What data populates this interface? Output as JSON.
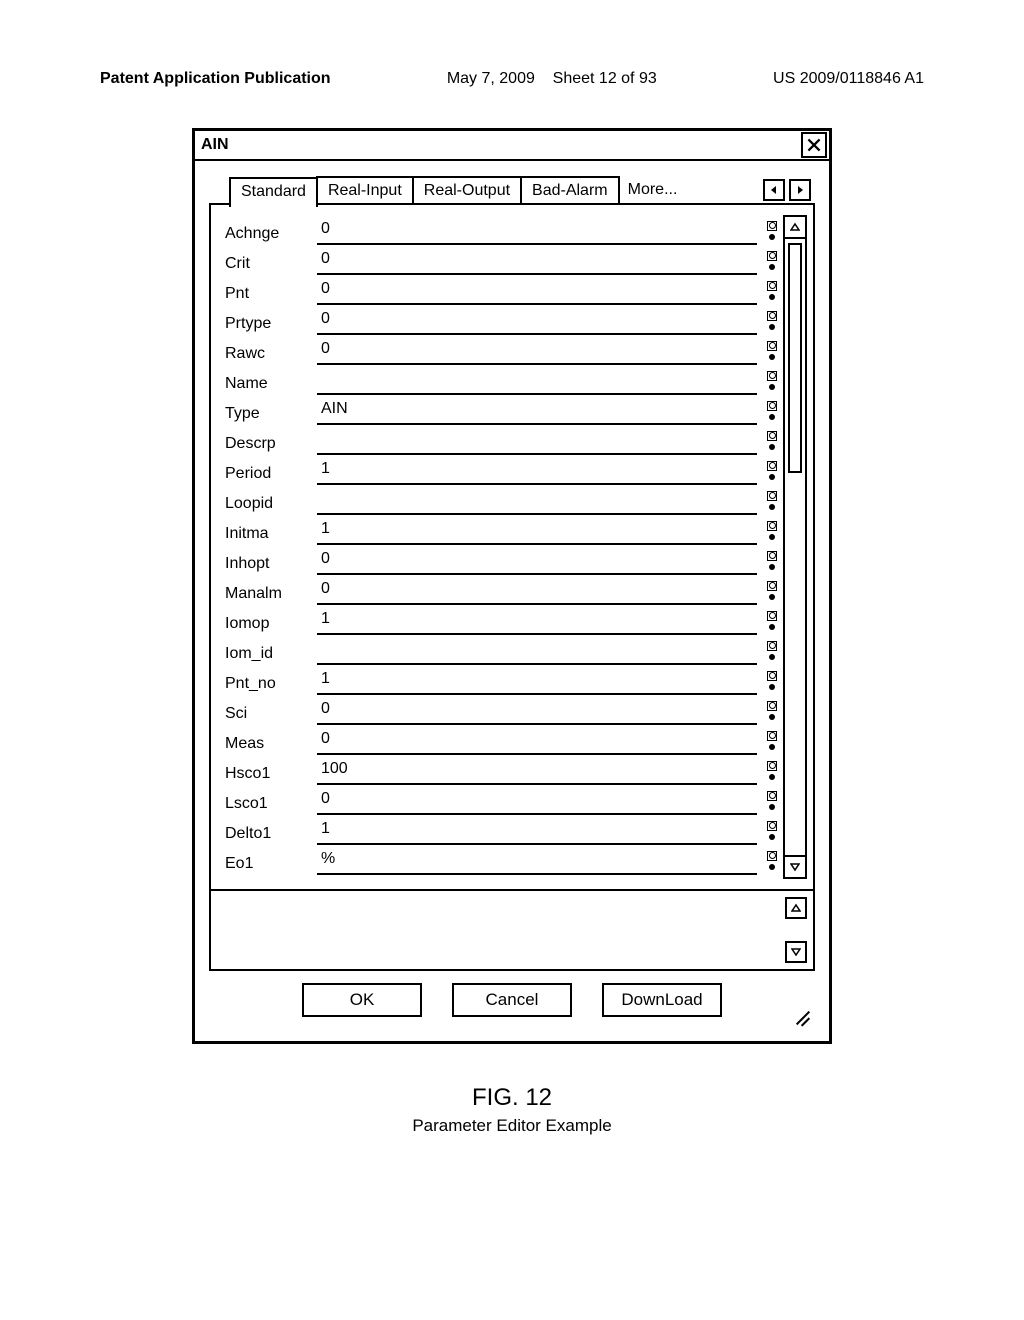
{
  "header": {
    "left": "Patent Application Publication",
    "date": "May 7, 2009",
    "sheet": "Sheet 12 of 93",
    "pubno": "US 2009/0118846 A1"
  },
  "dialog": {
    "title": "AIN",
    "tabs": [
      "Standard",
      "Real-Input",
      "Real-Output",
      "Bad-Alarm"
    ],
    "more_label": "More...",
    "params": [
      {
        "label": "Achnge",
        "value": "0"
      },
      {
        "label": "Crit",
        "value": "0"
      },
      {
        "label": "Pnt",
        "value": "0"
      },
      {
        "label": "Prtype",
        "value": "0"
      },
      {
        "label": "Rawc",
        "value": "0"
      },
      {
        "label": "Name",
        "value": ""
      },
      {
        "label": "Type",
        "value": "AIN"
      },
      {
        "label": "Descrp",
        "value": ""
      },
      {
        "label": "Period",
        "value": "1"
      },
      {
        "label": "Loopid",
        "value": ""
      },
      {
        "label": "Initma",
        "value": "1"
      },
      {
        "label": "Inhopt",
        "value": "0"
      },
      {
        "label": "Manalm",
        "value": "0"
      },
      {
        "label": "Iomop",
        "value": "1"
      },
      {
        "label": "Iom_id",
        "value": ""
      },
      {
        "label": "Pnt_no",
        "value": "1"
      },
      {
        "label": "Sci",
        "value": "0"
      },
      {
        "label": "Meas",
        "value": "0"
      },
      {
        "label": "Hsco1",
        "value": "100"
      },
      {
        "label": "Lsco1",
        "value": "0"
      },
      {
        "label": "Delto1",
        "value": "1"
      },
      {
        "label": "Eo1",
        "value": "%"
      }
    ],
    "buttons": {
      "ok": "OK",
      "cancel": "Cancel",
      "download": "DownLoad"
    }
  },
  "figure": {
    "num": "FIG. 12",
    "caption": "Parameter Editor Example"
  }
}
